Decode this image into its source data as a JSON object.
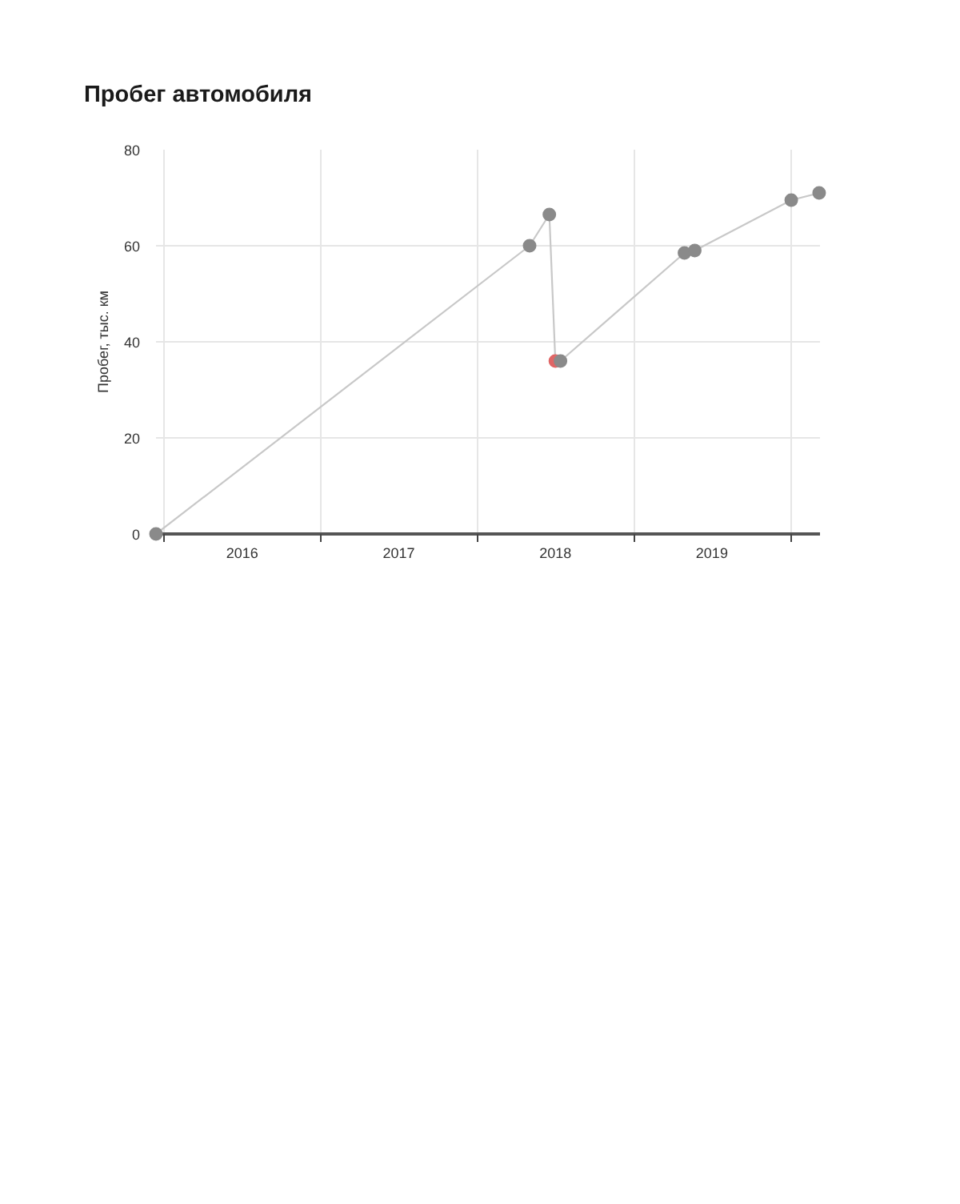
{
  "chart_data": {
    "type": "line",
    "title": "Пробег автомобиля",
    "ylabel": "Пробег, тыс. км",
    "x": [
      "2015-12-14",
      "2018-05-03",
      "2018-06-18",
      "2018-07-02",
      "2018-07-14",
      "2019-04-29",
      "2019-05-23",
      "2020-01-03",
      "2020-03-08"
    ],
    "series": [
      {
        "color": "#c8c8c8",
        "colors": [
          "#8a8a8a",
          "#8a8a8a",
          "#8a8a8a",
          "#e06666",
          "#8a8a8a",
          "#8a8a8a",
          "#8a8a8a",
          "#8a8a8a",
          "#8a8a8a"
        ],
        "values": [
          0,
          60,
          66.5,
          36,
          36,
          58.5,
          59,
          69.5,
          71
        ]
      }
    ],
    "marker": "circle",
    "grid": true,
    "xlim": [
      "2015-12-14",
      "2020-03-10"
    ],
    "ylim": [
      0,
      80
    ],
    "xticks": [
      {
        "value": "2016-01-01",
        "label": null
      },
      {
        "value": "2016-07-02",
        "label": "2016"
      },
      {
        "value": "2017-01-01",
        "label": null
      },
      {
        "value": "2017-07-02",
        "label": "2017"
      },
      {
        "value": "2018-01-01",
        "label": null
      },
      {
        "value": "2018-07-02",
        "label": "2018"
      },
      {
        "value": "2019-01-01",
        "label": null
      },
      {
        "value": "2019-07-02",
        "label": "2019"
      },
      {
        "value": "2020-01-01",
        "label": null
      }
    ],
    "yticks": [
      0,
      20,
      40,
      60,
      80
    ]
  }
}
